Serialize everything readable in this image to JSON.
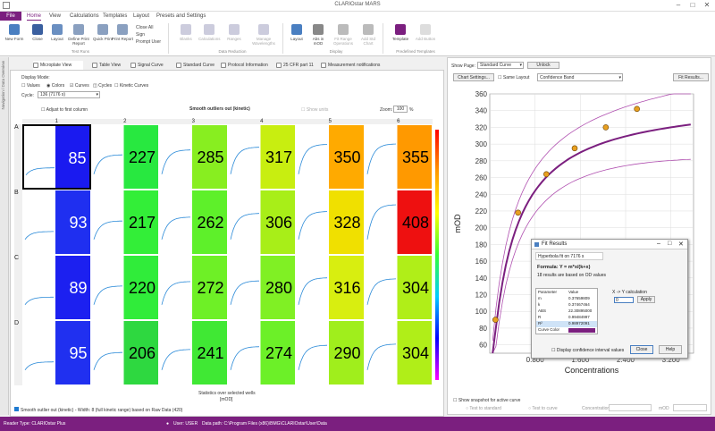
{
  "app": {
    "title": "CLARIOstar MARS"
  },
  "menu": {
    "file": "File",
    "items": [
      "Home",
      "View",
      "Calculations",
      "Templates",
      "Layout",
      "Presets and Settings"
    ]
  },
  "ribbon": {
    "buttons": [
      {
        "label": "New Form",
        "color": "#4a7fc1"
      },
      {
        "label": "Close",
        "color": "#3a5f9f"
      },
      {
        "label": "Layout",
        "color": "#6a8fc1"
      },
      {
        "label": "Define Print Report",
        "color": "#8aa0c0"
      },
      {
        "label": "Quick Print",
        "color": "#8aa0c0"
      },
      {
        "label": "Print Report",
        "color": "#8aa0c0"
      }
    ],
    "small": [
      "Close All",
      "Sign",
      "Prompt User"
    ],
    "blank_buttons": [
      "Blanks",
      "Calculations",
      "Ranges",
      "Manage Wavelengths"
    ],
    "right_buttons": [
      {
        "label": "Layout",
        "color": "#4a7fc1"
      },
      {
        "label": "Abs in mOD",
        "color": "#888"
      },
      {
        "label": "Fit Range Operations",
        "color": "#999"
      },
      {
        "label": "Add Std Chart",
        "color": "#999"
      },
      {
        "label": "Template",
        "color": "#7b1f7f"
      },
      {
        "label": "Add Button",
        "color": "#bbb"
      }
    ],
    "groups": [
      "Test Runs",
      "Data Reduction",
      "Display",
      "Predefined Templates"
    ]
  },
  "left_strip": "Navigation / Data Overview",
  "tabs": [
    "Microplate View",
    "Table View",
    "Signal Curve",
    "Standard Curve",
    "Protocol Information",
    "25 CFR part 11",
    "Measurement notifications"
  ],
  "display": {
    "label": "Display Mode:",
    "options": [
      "Values",
      "Colors",
      "Curves",
      "Cycles",
      "Kinetic Curves"
    ],
    "cycle_label": "Cycle:",
    "cycle_value": "136 (7176 s)",
    "adjust_label": "Adjust to first column",
    "title": "Smooth outliers out (kinetic)",
    "show_label": "Show units",
    "zoom_label": "Zoom:",
    "zoom_value": "100",
    "zoom_unit": "%"
  },
  "plate": {
    "rows": [
      "A",
      "B",
      "C",
      "D"
    ],
    "cols": [
      "1",
      "2",
      "3",
      "4",
      "5",
      "6"
    ],
    "values": [
      [
        "85",
        "227",
        "285",
        "317",
        "350",
        "355"
      ],
      [
        "93",
        "217",
        "262",
        "306",
        "328",
        "408"
      ],
      [
        "89",
        "220",
        "272",
        "280",
        "316",
        "304"
      ],
      [
        "95",
        "206",
        "241",
        "274",
        "290",
        "304"
      ]
    ],
    "colors": [
      [
        "#1a1af0",
        "#28e840",
        "#88ee20",
        "#c8ee10",
        "#ffaa00",
        "#ff9900"
      ],
      [
        "#1f2ff0",
        "#33ee38",
        "#5ef02a",
        "#a8ee18",
        "#f0e000",
        "#ee1010"
      ],
      [
        "#1c20f0",
        "#30ec3a",
        "#6ef026",
        "#80f024",
        "#d8ee10",
        "#b0ee18"
      ],
      [
        "#2030f0",
        "#2ed840",
        "#40e834",
        "#6cf028",
        "#a0ee1c",
        "#b0ee18"
      ]
    ],
    "footer": "Statistics over selected wells",
    "unit": "[mOD]"
  },
  "plate_status": "Smooth outlier out (kinetic) - Width: 8 (full kinetic range) based on Raw Data (420)",
  "right": {
    "show_page": "Show Page:",
    "page_value": "Standard Curve",
    "unlock": "Unlock",
    "chart_settings": "Chart Settings...",
    "same_layout": "Same Layout",
    "band": "Confidence Band",
    "fit_results": "Fit Results...",
    "show_snapshot": "Show snapshot for active curve",
    "test_label": "Test to standard",
    "test_curve": "Test to curve",
    "concentration": "Concentration",
    "mod": "mOD"
  },
  "chart_data": {
    "type": "scatter",
    "xlabel": "Concentrations",
    "ylabel": "mOD",
    "xlim": [
      0,
      3.6
    ],
    "ylim": [
      50,
      360
    ],
    "xticks": [
      "0.800",
      "1.600",
      "2.400",
      "3.200"
    ],
    "yticks": [
      "60",
      "80",
      "100",
      "120",
      "140",
      "160",
      "180",
      "200",
      "220",
      "240",
      "260",
      "280",
      "300",
      "320",
      "340",
      "360"
    ],
    "points": [
      [
        0.1,
        90
      ],
      [
        0.5,
        218
      ],
      [
        1.0,
        264
      ],
      [
        1.5,
        295
      ],
      [
        2.05,
        320
      ],
      [
        2.6,
        342
      ]
    ],
    "fit_color": "#7b1f7f",
    "band_color": "#b050b0",
    "point_color": "#e8a020"
  },
  "dialog": {
    "title": "Fit Results",
    "tab": "Hyperbola fit on 7176 s",
    "formula": "Formula: Y = m*x/(k+x)",
    "note": "18 results are based on OD values",
    "param_hdr": "Parameter",
    "value_hdr": "Value",
    "params": [
      [
        "m",
        "0.37659809"
      ],
      [
        "k",
        "0.37467464"
      ],
      [
        "ABS",
        "22.30895000"
      ],
      [
        "R",
        "0.99484997"
      ],
      [
        "R²",
        "0.98972091"
      ],
      [
        "Curve Color",
        ""
      ]
    ],
    "xtoy_label": "X -> Y calculation",
    "xtoy_value": "0",
    "apply": "Apply",
    "show_conf": "Display confidence interval values",
    "close": "Close",
    "help": "Help"
  },
  "status": {
    "reader": "Reader Type: CLARIOstar Plus",
    "user": "User: USER",
    "path": "Data path: C:\\Program Files (x86)\\BMG\\CLARIOstar\\User\\Data"
  }
}
